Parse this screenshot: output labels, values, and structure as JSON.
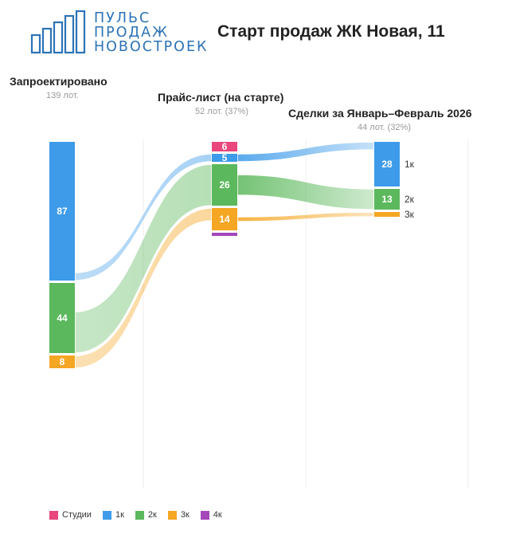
{
  "logo": {
    "lines": [
      "ПУЛЬС",
      "ПРОДАЖ",
      "НОВОСТРОЕК"
    ],
    "color": "#2d73b6"
  },
  "title": "Старт продаж ЖК Новая, 11",
  "stages": {
    "designed": {
      "title": "Запроектировано",
      "sub": "139 лот."
    },
    "price": {
      "title": "Прайс-лист (на старте)",
      "sub": "52 лот. (37%)"
    },
    "deals": {
      "title": "Сделки за Январь–Февраль 2026",
      "sub": "44 лот. (32%)"
    }
  },
  "legend": [
    {
      "key": "studio",
      "label": "Студии",
      "color": "#e8467c"
    },
    {
      "key": "1k",
      "label": "1к",
      "color": "#3d9be9"
    },
    {
      "key": "2k",
      "label": "2к",
      "color": "#5cb85c"
    },
    {
      "key": "3k",
      "label": "3к",
      "color": "#f5a623"
    },
    {
      "key": "4k",
      "label": "4к",
      "color": "#a347ba"
    }
  ],
  "chart_data": {
    "type": "sankey",
    "stages": [
      "Запроектировано",
      "Прайс-лист (на старте)",
      "Сделки за Январь–Февраль 2026"
    ],
    "nodes": {
      "designed": [
        {
          "key": "1k",
          "value": 87,
          "label": "87"
        },
        {
          "key": "2k",
          "value": 44,
          "label": "44"
        },
        {
          "key": "3k",
          "value": 8,
          "label": "8"
        }
      ],
      "price": [
        {
          "key": "studio",
          "value": 6,
          "label": "6"
        },
        {
          "key": "1k",
          "value": 5,
          "label": "5"
        },
        {
          "key": "2k",
          "value": 26,
          "label": "26"
        },
        {
          "key": "3k",
          "value": 14,
          "label": "14"
        },
        {
          "key": "4k",
          "value": 1,
          "label": ""
        }
      ],
      "deals": [
        {
          "key": "1k",
          "value": 28,
          "label": "28",
          "side_label": "1к"
        },
        {
          "key": "2k",
          "value": 13,
          "label": "13",
          "side_label": "2к"
        },
        {
          "key": "3k",
          "value": 3,
          "label": "",
          "side_label": "3к"
        }
      ]
    },
    "flows": [
      {
        "from": "designed",
        "to": "price",
        "key": "1k"
      },
      {
        "from": "designed",
        "to": "price",
        "key": "2k"
      },
      {
        "from": "designed",
        "to": "price",
        "key": "3k"
      },
      {
        "from": "price",
        "to": "deals",
        "key": "1k"
      },
      {
        "from": "price",
        "to": "deals",
        "key": "2k"
      },
      {
        "from": "price",
        "to": "deals",
        "key": "3k"
      }
    ],
    "grid": true
  }
}
